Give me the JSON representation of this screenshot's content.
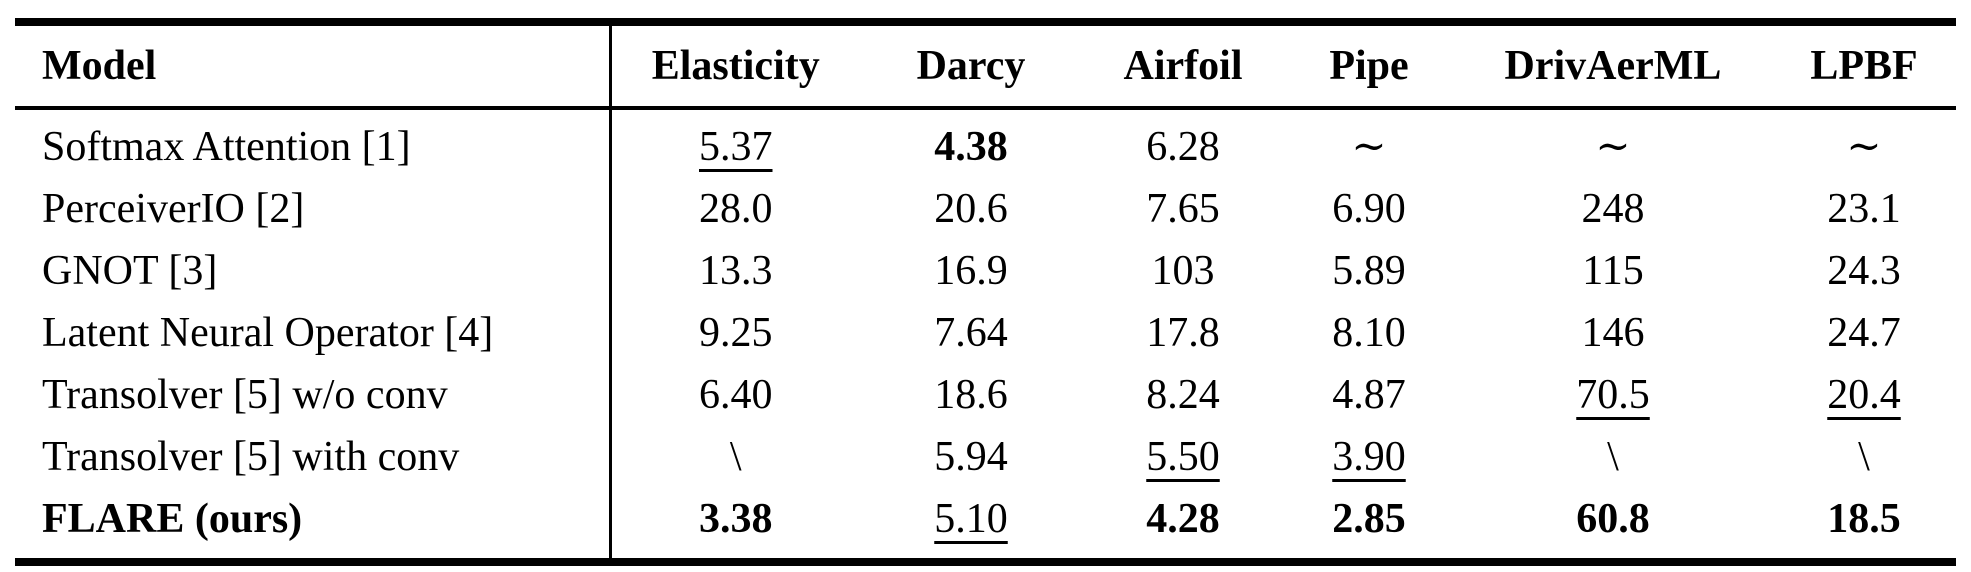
{
  "table": {
    "columns": [
      {
        "key": "model",
        "label": "Model"
      },
      {
        "key": "elasticity",
        "label": "Elasticity"
      },
      {
        "key": "darcy",
        "label": "Darcy"
      },
      {
        "key": "airfoil",
        "label": "Airfoil"
      },
      {
        "key": "pipe",
        "label": "Pipe"
      },
      {
        "key": "drivaerml",
        "label": "DrivAerML"
      },
      {
        "key": "lpbf",
        "label": "LPBF"
      }
    ],
    "rows": [
      {
        "model": "Softmax Attention [1]",
        "model_style": "normal",
        "values": [
          {
            "text": "5.37",
            "style": "underline"
          },
          {
            "text": "4.38",
            "style": "bold"
          },
          {
            "text": "6.28",
            "style": "normal"
          },
          {
            "text": "∼",
            "style": "normal"
          },
          {
            "text": "∼",
            "style": "normal"
          },
          {
            "text": "∼",
            "style": "normal"
          }
        ]
      },
      {
        "model": "PerceiverIO [2]",
        "model_style": "normal",
        "values": [
          {
            "text": "28.0",
            "style": "normal"
          },
          {
            "text": "20.6",
            "style": "normal"
          },
          {
            "text": "7.65",
            "style": "normal"
          },
          {
            "text": "6.90",
            "style": "normal"
          },
          {
            "text": "248",
            "style": "normal"
          },
          {
            "text": "23.1",
            "style": "normal"
          }
        ]
      },
      {
        "model": "GNOT [3]",
        "model_style": "normal",
        "values": [
          {
            "text": "13.3",
            "style": "normal"
          },
          {
            "text": "16.9",
            "style": "normal"
          },
          {
            "text": "103",
            "style": "normal"
          },
          {
            "text": "5.89",
            "style": "normal"
          },
          {
            "text": "115",
            "style": "normal"
          },
          {
            "text": "24.3",
            "style": "normal"
          }
        ]
      },
      {
        "model": "Latent Neural Operator [4]",
        "model_style": "normal",
        "values": [
          {
            "text": "9.25",
            "style": "normal"
          },
          {
            "text": "7.64",
            "style": "normal"
          },
          {
            "text": "17.8",
            "style": "normal"
          },
          {
            "text": "8.10",
            "style": "normal"
          },
          {
            "text": "146",
            "style": "normal"
          },
          {
            "text": "24.7",
            "style": "normal"
          }
        ]
      },
      {
        "model": "Transolver [5] w/o conv",
        "model_style": "normal",
        "values": [
          {
            "text": "6.40",
            "style": "normal"
          },
          {
            "text": "18.6",
            "style": "normal"
          },
          {
            "text": "8.24",
            "style": "normal"
          },
          {
            "text": "4.87",
            "style": "normal"
          },
          {
            "text": "70.5",
            "style": "underline"
          },
          {
            "text": "20.4",
            "style": "underline"
          }
        ]
      },
      {
        "model": "Transolver [5] with conv",
        "model_style": "normal",
        "values": [
          {
            "text": "\\",
            "style": "normal"
          },
          {
            "text": "5.94",
            "style": "normal"
          },
          {
            "text": "5.50",
            "style": "underline"
          },
          {
            "text": "3.90",
            "style": "underline"
          },
          {
            "text": "\\",
            "style": "normal"
          },
          {
            "text": "\\",
            "style": "normal"
          }
        ]
      },
      {
        "model": "FLARE (ours)",
        "model_style": "bold",
        "values": [
          {
            "text": "3.38",
            "style": "bold"
          },
          {
            "text": "5.10",
            "style": "underline"
          },
          {
            "text": "4.28",
            "style": "bold"
          },
          {
            "text": "2.85",
            "style": "bold"
          },
          {
            "text": "60.8",
            "style": "bold"
          },
          {
            "text": "18.5",
            "style": "bold"
          }
        ]
      }
    ]
  },
  "chart_data": {
    "type": "table",
    "columns": [
      "Model",
      "Elasticity",
      "Darcy",
      "Airfoil",
      "Pipe",
      "DrivAerML",
      "LPBF"
    ],
    "rows": [
      [
        "Softmax Attention [1]",
        "5.37",
        "4.38",
        "6.28",
        "∼",
        "∼",
        "∼"
      ],
      [
        "PerceiverIO [2]",
        "28.0",
        "20.6",
        "7.65",
        "6.90",
        "248",
        "23.1"
      ],
      [
        "GNOT [3]",
        "13.3",
        "16.9",
        "103",
        "5.89",
        "115",
        "24.3"
      ],
      [
        "Latent Neural Operator [4]",
        "9.25",
        "7.64",
        "17.8",
        "8.10",
        "146",
        "24.7"
      ],
      [
        "Transolver [5] w/o conv",
        "6.40",
        "18.6",
        "8.24",
        "4.87",
        "70.5",
        "20.4"
      ],
      [
        "Transolver [5] with conv",
        "\\",
        "5.94",
        "5.50",
        "3.90",
        "\\",
        "\\"
      ],
      [
        "FLARE (ours)",
        "3.38",
        "5.10",
        "4.28",
        "2.85",
        "60.8",
        "18.5"
      ]
    ]
  }
}
